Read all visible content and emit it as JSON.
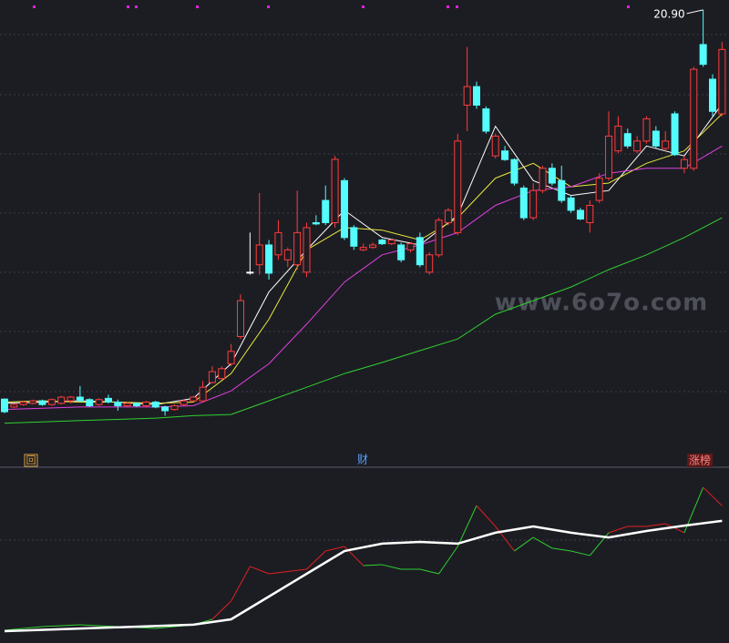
{
  "chart_data": {
    "type": "candlestick",
    "ylim": [
      4,
      21.3
    ],
    "up_color": "#ff3c3c",
    "down_color": "#54fcfc",
    "flat_color": "#ffffff",
    "max_label": "20.90",
    "open": [
      5.17,
      4.85,
      4.95,
      5.0,
      5.1,
      4.95,
      5.0,
      5.1,
      5.25,
      5.15,
      4.95,
      5.2,
      5.05,
      4.9,
      5.0,
      4.9,
      5.05,
      4.85,
      4.75,
      4.95,
      5.1,
      5.1,
      5.84,
      6.0,
      6.6,
      7.7,
      10.3,
      10.6,
      11.4,
      11.0,
      10.8,
      10.6,
      10.3,
      12.3,
      13.2,
      12.3,
      14.0,
      12.1,
      11.2,
      11.3,
      11.6,
      11.45,
      11.4,
      11.2,
      11.7,
      10.3,
      11.0,
      12.3,
      11.9,
      17.05,
      17.8,
      16.9,
      15.0,
      15.2,
      14.85,
      13.7,
      12.5,
      13.6,
      14.5,
      14.0,
      13.3,
      12.8,
      12.3,
      13.2,
      14.1,
      15.2,
      15.9,
      15.2,
      15.6,
      16.0,
      15.3,
      16.7,
      14.5,
      14.5,
      19.5,
      18.1,
      16.7
    ],
    "high": [
      5.2,
      5.0,
      5.1,
      5.15,
      5.15,
      5.2,
      5.3,
      5.3,
      5.7,
      5.2,
      5.2,
      5.35,
      5.15,
      5.05,
      5.05,
      5.1,
      5.1,
      4.9,
      4.95,
      5.15,
      5.3,
      5.9,
      6.5,
      6.5,
      7.4,
      9.4,
      11.9,
      13.5,
      11.6,
      12.4,
      11.3,
      13.6,
      12.3,
      12.6,
      13.8,
      15.0,
      14.1,
      12.2,
      11.45,
      11.5,
      11.65,
      11.65,
      11.5,
      11.5,
      11.9,
      11.1,
      12.5,
      12.9,
      15.9,
      19.4,
      18.0,
      17.0,
      15.9,
      15.4,
      14.9,
      13.8,
      13.9,
      14.6,
      14.7,
      14.6,
      13.4,
      12.9,
      13.2,
      14.3,
      16.8,
      16.6,
      16.1,
      15.8,
      16.6,
      16.2,
      16.0,
      16.8,
      15.0,
      18.6,
      20.9,
      18.3,
      19.6
    ],
    "low": [
      4.6,
      4.8,
      4.9,
      4.95,
      4.9,
      4.9,
      4.95,
      5.0,
      5.05,
      4.85,
      4.9,
      5.0,
      4.7,
      4.85,
      4.85,
      4.85,
      4.8,
      4.5,
      4.7,
      4.9,
      5.05,
      5.05,
      5.8,
      5.95,
      6.5,
      7.6,
      10.2,
      10.2,
      10.0,
      10.8,
      10.5,
      10.4,
      10.1,
      12.2,
      12.2,
      12.1,
      11.6,
      11.2,
      11.15,
      11.25,
      11.4,
      11.4,
      10.7,
      11.1,
      10.5,
      10.2,
      10.9,
      12.2,
      11.8,
      16.0,
      16.9,
      15.9,
      14.9,
      14.8,
      13.8,
      12.4,
      12.4,
      13.5,
      13.8,
      13.1,
      12.7,
      12.4,
      11.9,
      13.1,
      14.0,
      15.1,
      15.3,
      15.1,
      15.5,
      15.3,
      15.2,
      15.0,
      14.3,
      14.4,
      18.6,
      16.6,
      16.6
    ],
    "close": [
      4.66,
      4.95,
      5.05,
      5.1,
      4.95,
      5.15,
      5.25,
      5.25,
      5.1,
      4.9,
      5.15,
      5.05,
      4.9,
      5.0,
      4.9,
      5.05,
      4.85,
      4.7,
      4.9,
      5.1,
      5.25,
      5.65,
      6.28,
      6.4,
      7.1,
      9.15,
      10.3,
      11.4,
      10.26,
      11.9,
      11.2,
      11.9,
      12.1,
      12.25,
      12.3,
      14.86,
      11.7,
      11.35,
      11.3,
      11.4,
      11.45,
      11.6,
      10.8,
      11.45,
      10.6,
      11.0,
      12.4,
      12.8,
      15.6,
      17.8,
      17.05,
      16.0,
      15.8,
      14.85,
      13.9,
      12.5,
      13.6,
      14.5,
      13.9,
      13.2,
      12.8,
      12.45,
      13.0,
      14.1,
      15.8,
      16.2,
      15.4,
      15.6,
      16.5,
      15.4,
      15.6,
      15.05,
      14.85,
      18.5,
      18.7,
      16.8,
      19.3
    ],
    "ma": [
      {
        "color": "#ffffff",
        "x": [
          0,
          4,
          8,
          12,
          16,
          20,
          24,
          28,
          32,
          36,
          40,
          44,
          48,
          52,
          56,
          60,
          64,
          68,
          72,
          76
        ],
        "values": [
          5.0,
          5.05,
          5.1,
          5.05,
          4.95,
          5.2,
          6.6,
          9.5,
          11.2,
          12.8,
          11.7,
          11.4,
          12.6,
          16.2,
          14.0,
          13.4,
          13.6,
          15.4,
          15.0,
          17.1
        ]
      },
      {
        "color": "#e8e83c",
        "x": [
          0,
          4,
          8,
          12,
          16,
          20,
          24,
          28,
          32,
          36,
          40,
          44,
          48,
          52,
          56,
          60,
          64,
          68,
          72,
          76
        ],
        "values": [
          5.05,
          5.1,
          5.05,
          5.05,
          5.0,
          5.05,
          6.2,
          8.4,
          11.2,
          12.1,
          12.0,
          11.6,
          12.5,
          14.1,
          14.7,
          13.75,
          13.9,
          14.7,
          15.2,
          16.7
        ]
      },
      {
        "color": "#e040e0",
        "x": [
          0,
          4,
          8,
          12,
          16,
          20,
          24,
          28,
          32,
          36,
          40,
          44,
          48,
          52,
          56,
          60,
          64,
          68,
          72,
          76
        ],
        "values": [
          4.75,
          4.8,
          4.85,
          4.85,
          4.85,
          4.9,
          5.5,
          6.6,
          8.2,
          9.9,
          11.0,
          11.4,
          11.9,
          13.0,
          13.6,
          13.75,
          14.3,
          14.5,
          14.5,
          15.4
        ]
      },
      {
        "color": "#30d030",
        "x": [
          0,
          4,
          8,
          12,
          16,
          20,
          24,
          28,
          32,
          36,
          40,
          44,
          48,
          52,
          56,
          60,
          64,
          68,
          72,
          76
        ],
        "values": [
          4.2,
          4.25,
          4.3,
          4.35,
          4.4,
          4.5,
          4.55,
          5.1,
          5.65,
          6.2,
          6.65,
          7.13,
          7.6,
          8.6,
          9.15,
          9.7,
          10.4,
          11.0,
          11.7,
          12.5
        ]
      }
    ],
    "indicator": {
      "ylim": [
        0,
        100
      ],
      "smooth": {
        "color": "#ffffff",
        "x": [
          0,
          20,
          24,
          28,
          32,
          36,
          40,
          44,
          48,
          52,
          56,
          60,
          64,
          68,
          72,
          76
        ],
        "values": [
          6.8,
          10.5,
          13.6,
          26.7,
          39.8,
          52.9,
          57.1,
          58.1,
          57.1,
          63.4,
          67,
          63.4,
          60.7,
          64.4,
          67.5,
          70.2
        ]
      },
      "signal": {
        "x": [
          0,
          4,
          8,
          12,
          16,
          20,
          22,
          24,
          26,
          28,
          32,
          34,
          36,
          38,
          40,
          42,
          44,
          46,
          48,
          50,
          52,
          54,
          56,
          58,
          60,
          62,
          64,
          66,
          68,
          70,
          72,
          74,
          76
        ],
        "values": [
          7.3,
          9.4,
          10.5,
          9.4,
          8.4,
          10.5,
          13.6,
          24.1,
          44,
          39.8,
          42.4,
          52.9,
          55.5,
          44.5,
          45,
          42.4,
          42.4,
          39.8,
          55.5,
          79,
          67,
          52.9,
          60.7,
          54.5,
          52.9,
          50.3,
          63.4,
          67,
          67,
          68.6,
          63.4,
          89.5,
          78.9
        ],
        "colors": [
          "#30d030",
          "#30d030",
          "#30d030",
          "#30d030",
          "#30d030",
          "#30d030",
          "#e02020",
          "#e02020",
          "#e02020",
          "#e02020",
          "#e02020",
          "#e02020",
          "#e02020",
          "#30d030",
          "#30d030",
          "#30d030",
          "#30d030",
          "#30d030",
          "#30d030",
          "#e02020",
          "#e02020",
          "#30d030",
          "#30d030",
          "#30d030",
          "#30d030",
          "#30d030",
          "#e02020",
          "#e02020",
          "#e02020",
          "#e02020",
          "#30d030",
          "#e02020",
          "#e02020"
        ]
      }
    }
  },
  "watermark": "www.6o7o.com",
  "toolbar": [
    "回",
    "财",
    "涨榜"
  ]
}
